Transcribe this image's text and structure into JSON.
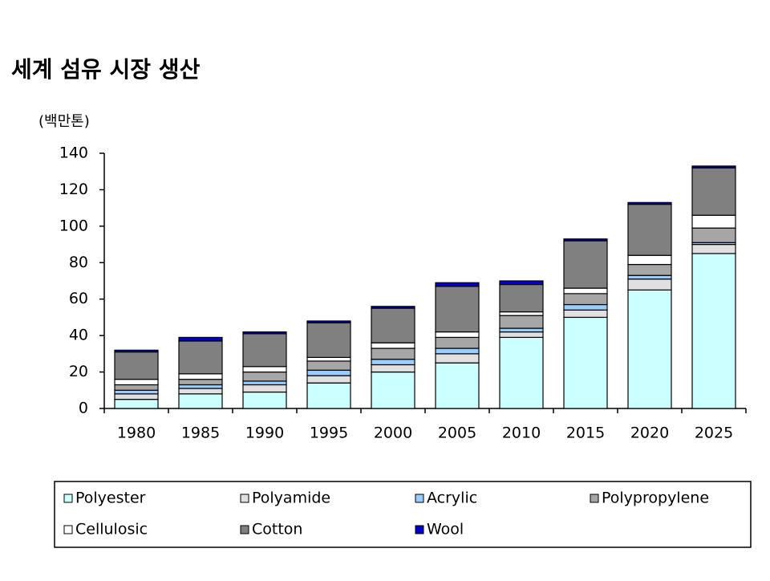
{
  "chart_data": {
    "type": "stacked-bar",
    "title": "세계 섬유 시장 생산",
    "y_label": "(백만톤)",
    "categories": [
      "1980",
      "1985",
      "1990",
      "1995",
      "2000",
      "2005",
      "2010",
      "2015",
      "2020",
      "2025"
    ],
    "series": [
      {
        "name": "Polyester",
        "color": "#ccffff",
        "values": [
          5,
          8,
          9,
          14,
          20,
          25,
          39,
          50,
          65,
          85
        ]
      },
      {
        "name": "Polyamide",
        "color": "#e0e0e0",
        "values": [
          3,
          3,
          4,
          4,
          4,
          5,
          3,
          4,
          6,
          5
        ]
      },
      {
        "name": "Acrylic",
        "color": "#99ccff",
        "values": [
          2,
          2,
          2,
          3,
          3,
          3,
          2,
          3,
          2,
          1
        ]
      },
      {
        "name": "Polypropylene",
        "color": "#a6a6a6",
        "values": [
          3,
          3,
          5,
          5,
          6,
          6,
          7,
          6,
          6,
          8
        ]
      },
      {
        "name": "Cellulosic",
        "color": "#ffffff",
        "values": [
          3,
          3,
          3,
          2,
          3,
          3,
          2,
          3,
          5,
          7
        ]
      },
      {
        "name": "Cotton",
        "color": "#808080",
        "values": [
          15,
          18,
          18,
          19,
          19,
          25,
          15,
          26,
          28,
          26
        ]
      },
      {
        "name": "Wool",
        "color": "#0000cc",
        "values": [
          1,
          2,
          1,
          1,
          1,
          2,
          2,
          1,
          1,
          1
        ]
      }
    ],
    "ylim": [
      0,
      140
    ],
    "yticks": [
      0,
      20,
      40,
      60,
      80,
      100,
      120,
      140
    ]
  }
}
